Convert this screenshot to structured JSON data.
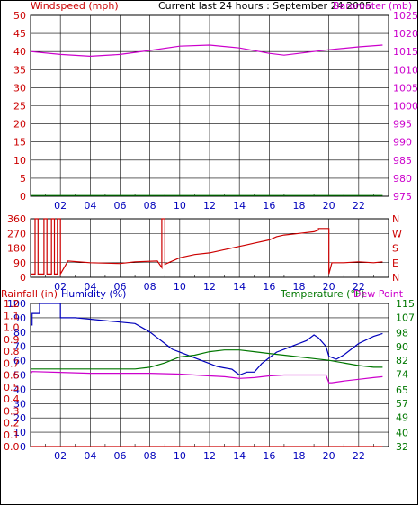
{
  "header": {
    "left_label": "Windspeed (mph)",
    "center_title": "Current last 24 hours : September 24 2005",
    "right_label": "Barometer (mb)"
  },
  "colors": {
    "red": "#cc0000",
    "magenta": "#cc00cc",
    "green": "#007700",
    "blue": "#0000bb",
    "grid": "#000000"
  },
  "chart_data": [
    {
      "type": "line",
      "title": "Current last 24 hours : September 24 2005",
      "xlabel": "",
      "x_ticks": [
        "02",
        "04",
        "06",
        "08",
        "10",
        "12",
        "14",
        "16",
        "18",
        "20",
        "22"
      ],
      "x_range": [
        0,
        24
      ],
      "y_left": {
        "label": "Windspeed (mph)",
        "ylim": [
          0,
          50
        ],
        "ticks": [
          0,
          5,
          10,
          15,
          20,
          25,
          30,
          35,
          40,
          45,
          50
        ]
      },
      "y_right": {
        "label": "Barometer (mb)",
        "ylim": [
          975,
          1025
        ],
        "ticks": [
          975,
          980,
          985,
          990,
          995,
          1000,
          1005,
          1010,
          1015,
          1020,
          1025
        ]
      },
      "series": [
        {
          "name": "Barometer (mb)",
          "axis": "right",
          "color": "#cc00cc",
          "x": [
            0,
            2,
            4,
            6,
            8,
            10,
            12,
            14,
            16,
            17,
            18,
            20,
            22,
            23.6
          ],
          "y": [
            1015,
            1014.2,
            1013.7,
            1014.2,
            1015.3,
            1016.5,
            1016.8,
            1016,
            1014.5,
            1014.0,
            1014.5,
            1015.5,
            1016.3,
            1016.8
          ]
        },
        {
          "name": "Windspeed (mph)",
          "axis": "left",
          "color": "#007700",
          "x": [
            0,
            23.6
          ],
          "y": [
            0.2,
            0.2
          ]
        }
      ],
      "grid": true
    },
    {
      "type": "line",
      "title": "",
      "x_ticks": [
        "02",
        "04",
        "06",
        "08",
        "10",
        "12",
        "14",
        "16",
        "18",
        "20",
        "22"
      ],
      "x_range": [
        0,
        24
      ],
      "y_left": {
        "label": "",
        "ylim": [
          0,
          360
        ],
        "ticks": [
          0,
          90,
          180,
          270,
          360
        ]
      },
      "y_right_labels": [
        "N",
        "W",
        "S",
        "E",
        "N"
      ],
      "series": [
        {
          "name": "",
          "axis": "left",
          "color": "#cc0000",
          "x": [
            0,
            0.3,
            0.3,
            0.5,
            0.5,
            0.9,
            0.9,
            1.1,
            1.1,
            1.4,
            1.4,
            1.6,
            1.6,
            1.8,
            1.8,
            2.0,
            2.0,
            2.5,
            4,
            6,
            7,
            8.5,
            8.8,
            8.8,
            9.0,
            9.0,
            10,
            11,
            12,
            13,
            14,
            14.5,
            15,
            16,
            16.5,
            17,
            18,
            19,
            19.3,
            19.3,
            20,
            20.0,
            20.2,
            21,
            22,
            23,
            23.6
          ],
          "y": [
            20,
            20,
            360,
            360,
            20,
            20,
            360,
            360,
            20,
            20,
            360,
            360,
            20,
            20,
            360,
            360,
            20,
            100,
            90,
            85,
            95,
            100,
            60,
            360,
            360,
            80,
            120,
            140,
            150,
            170,
            190,
            200,
            210,
            230,
            250,
            260,
            270,
            280,
            290,
            300,
            300,
            20,
            90,
            90,
            95,
            90,
            95
          ]
        }
      ],
      "grid": true
    },
    {
      "type": "line",
      "title": "",
      "x_ticks": [
        "02",
        "04",
        "06",
        "08",
        "10",
        "12",
        "14",
        "16",
        "18",
        "20",
        "22"
      ],
      "x_range": [
        0,
        24
      ],
      "y_left": {
        "label_rainfall": "Rainfall (in)",
        "label_humidity": "Humidity (%)",
        "ticks_humidity": [
          0,
          10,
          20,
          30,
          40,
          50,
          60,
          70,
          80,
          90,
          100
        ],
        "ticks_rainfall": [
          "0.0",
          "0.1",
          "0.2",
          "0.3",
          "0.4",
          "0.5",
          "0.6",
          "0.7",
          "0.8",
          "0.9",
          "1.0",
          "1.1",
          "1.2"
        ]
      },
      "y_right": {
        "label_temp": "Temperature (°F)",
        "label_dew": "Dew Point",
        "ticks": [
          32,
          40,
          49,
          57,
          65,
          74,
          82,
          90,
          98,
          107,
          115
        ]
      },
      "series": [
        {
          "name": "Humidity (%)",
          "axis": "humidity",
          "color": "#0000bb",
          "x": [
            0,
            0.1,
            0.1,
            0.6,
            0.6,
            2.0,
            2.0,
            3,
            5,
            7,
            8,
            8.5,
            9,
            9.5,
            10,
            10.5,
            11,
            12,
            12.5,
            13,
            13.5,
            14,
            14.5,
            15,
            15.5,
            16,
            16.5,
            17,
            17.5,
            18,
            18.5,
            19,
            19.3,
            19.8,
            20,
            20.5,
            21,
            22,
            23,
            23.6
          ],
          "y": [
            85,
            85,
            93,
            93,
            100,
            100,
            90,
            90,
            88,
            86,
            80,
            76,
            72,
            68,
            66,
            64,
            62,
            58,
            56,
            55,
            54,
            50,
            52,
            52,
            58,
            62,
            66,
            68,
            70,
            72,
            74,
            78,
            76,
            70,
            63,
            61,
            64,
            72,
            77,
            79
          ]
        },
        {
          "name": "Temperature (°F)",
          "axis": "temp",
          "color": "#007700",
          "x": [
            0,
            2,
            4,
            6,
            7,
            8,
            9,
            10,
            11,
            12,
            13,
            14,
            15,
            16,
            17,
            18,
            19,
            20,
            21,
            22,
            23,
            23.6
          ],
          "y": [
            77,
            77,
            77,
            77,
            77,
            78,
            80.5,
            84,
            85,
            87,
            88,
            88,
            87,
            86,
            85,
            84,
            83,
            82,
            80.5,
            79,
            78,
            78
          ]
        },
        {
          "name": "Dew Point",
          "axis": "temp",
          "color": "#cc00cc",
          "x": [
            0,
            0.1,
            2,
            4,
            6,
            8,
            10,
            11,
            12,
            13,
            14,
            15,
            16,
            17,
            18,
            19,
            19.8,
            20,
            20.2,
            21,
            22,
            23,
            23.6
          ],
          "y": [
            74,
            75.5,
            75,
            74.5,
            74.5,
            74.5,
            74,
            73.5,
            73,
            72.5,
            71.5,
            72,
            73,
            73.5,
            73.5,
            73.5,
            73.5,
            69,
            69,
            70,
            71,
            72,
            72.5
          ]
        },
        {
          "name": "Rainfall (in)",
          "axis": "rain",
          "color": "#cc0000",
          "x": [
            0,
            23.6
          ],
          "y": [
            0,
            0
          ]
        }
      ],
      "grid": true
    }
  ]
}
